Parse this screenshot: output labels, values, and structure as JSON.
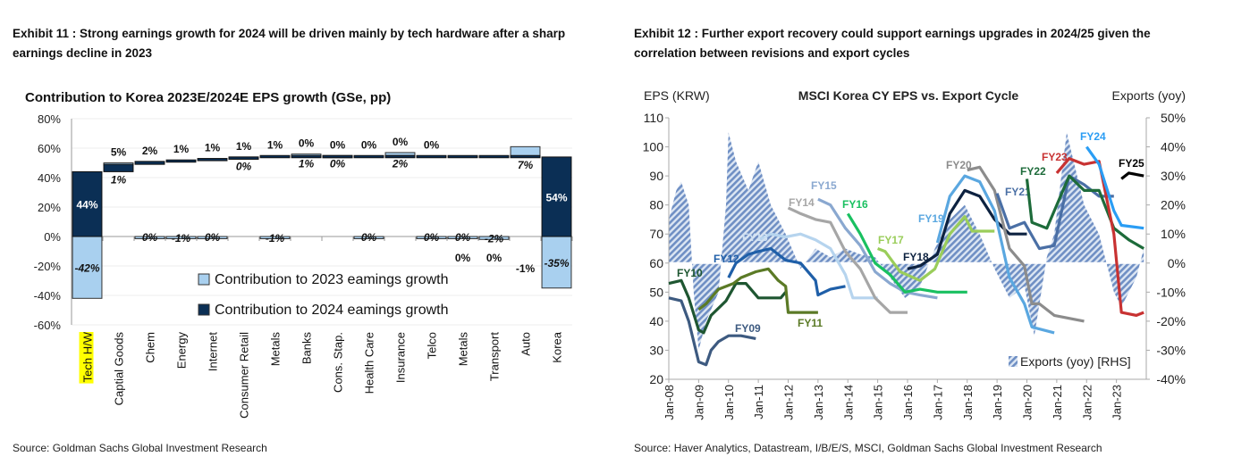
{
  "left": {
    "exhibit_title": "Exhibit 11 : Strong earnings growth for 2024 will be driven mainly by tech hardware after a sharp earnings decline in 2023",
    "source": "Source: Goldman Sachs Global Investment Research",
    "chart_data": {
      "type": "bar",
      "title": "Contribution to Korea 2023E/2024E EPS growth (GSe, pp)",
      "categories": [
        "Tech H/W",
        "Captial Goods",
        "Chem",
        "Energy",
        "Internet",
        "Consumer Retail",
        "Metals",
        "Banks",
        "Cons. Stap.",
        "Health Care",
        "Insurance",
        "Telco",
        "Metals",
        "Transport",
        "Auto",
        "Korea"
      ],
      "highlighted_category": "Tech H/W",
      "series": [
        {
          "name": "Contribution to 2023 eamings growth",
          "color": "#a9d0ef",
          "values": [
            -42,
            1,
            0,
            -1,
            0,
            0,
            -1,
            1,
            0,
            0,
            2,
            0,
            0,
            -2,
            7,
            -35
          ]
        },
        {
          "name": "Contribution to 2024 eamings growth",
          "color": "#0b2f55",
          "values": [
            44,
            5,
            2,
            1,
            1,
            1,
            1,
            0,
            0,
            0,
            0,
            0,
            0,
            0,
            -1,
            54
          ]
        }
      ],
      "yticks": [
        "80%",
        "60%",
        "40%",
        "20%",
        "0%",
        "-20%",
        "-40%",
        "-60%"
      ],
      "ylim": [
        -60,
        80
      ],
      "grid": true,
      "legend": "bottom-center"
    }
  },
  "right": {
    "exhibit_title": "Exhibit 12 : Further export recovery could support earnings upgrades in 2024/25 given the correlation between revisions and export cycles",
    "source": "Source: Haver Analytics, Datastream, I/B/E/S, MSCI, Goldman Sachs Global Investment Research",
    "chart_data": {
      "type": "line",
      "title": "MSCI Korea CY EPS vs. Export Cycle",
      "ylabel_left": "EPS (KRW)",
      "ylabel_right": "Exports (yoy)",
      "ylim_left": [
        20,
        110
      ],
      "ylim_right": [
        -40,
        50
      ],
      "yticks_left": [
        "110",
        "100",
        "90",
        "80",
        "70",
        "60",
        "50",
        "40",
        "30",
        "20"
      ],
      "yticks_right": [
        "50%",
        "40%",
        "30%",
        "20%",
        "10%",
        "0%",
        "-10%",
        "-20%",
        "-30%",
        "-40%"
      ],
      "xticks": [
        "Jan-08",
        "Jan-09",
        "Jan-10",
        "Jan-11",
        "Jan-12",
        "Jan-13",
        "Jan-14",
        "Jan-15",
        "Jan-16",
        "Jan-17",
        "Jan-18",
        "Jan-19",
        "Jan-20",
        "Jan-21",
        "Jan-22",
        "Jan-23"
      ],
      "legend": "bottom-right",
      "exports": {
        "name": "Exports (yoy) [RHS]",
        "color": "#5b7fb8",
        "points": [
          [
            "2008-01",
            15
          ],
          [
            "2008-04",
            25
          ],
          [
            "2008-06",
            28
          ],
          [
            "2008-09",
            20
          ],
          [
            "2008-11",
            -10
          ],
          [
            "2009-01",
            -30
          ],
          [
            "2009-04",
            -20
          ],
          [
            "2009-09",
            -10
          ],
          [
            "2009-12",
            20
          ],
          [
            "2010-01",
            45
          ],
          [
            "2010-04",
            35
          ],
          [
            "2010-09",
            25
          ],
          [
            "2011-01",
            35
          ],
          [
            "2011-06",
            20
          ],
          [
            "2011-12",
            10
          ],
          [
            "2012-06",
            -2
          ],
          [
            "2012-12",
            5
          ],
          [
            "2013-06",
            2
          ],
          [
            "2013-12",
            5
          ],
          [
            "2014-06",
            3
          ],
          [
            "2014-12",
            2
          ],
          [
            "2015-06",
            -5
          ],
          [
            "2015-12",
            -12
          ],
          [
            "2016-06",
            -8
          ],
          [
            "2016-12",
            5
          ],
          [
            "2017-06",
            15
          ],
          [
            "2017-12",
            20
          ],
          [
            "2018-06",
            10
          ],
          [
            "2018-12",
            -2
          ],
          [
            "2019-06",
            -12
          ],
          [
            "2019-12",
            -8
          ],
          [
            "2020-04",
            -25
          ],
          [
            "2020-09",
            2
          ],
          [
            "2020-12",
            10
          ],
          [
            "2021-05",
            45
          ],
          [
            "2021-12",
            20
          ],
          [
            "2022-06",
            10
          ],
          [
            "2022-12",
            -10
          ],
          [
            "2023-03",
            -15
          ],
          [
            "2023-09",
            -5
          ],
          [
            "2023-12",
            5
          ]
        ]
      },
      "series": [
        {
          "name": "FY09",
          "color": "#3d5a80",
          "points": [
            [
              "2008-01",
              48
            ],
            [
              "2008-06",
              47
            ],
            [
              "2008-09",
              40
            ],
            [
              "2009-01",
              26
            ],
            [
              "2009-04",
              25
            ],
            [
              "2009-06",
              30
            ],
            [
              "2009-09",
              33
            ],
            [
              "2010-01",
              35
            ],
            [
              "2010-06",
              35
            ],
            [
              "2010-12",
              34
            ]
          ]
        },
        {
          "name": "FY10",
          "color": "#1e5631",
          "points": [
            [
              "2008-01",
              53
            ],
            [
              "2008-06",
              54
            ],
            [
              "2008-09",
              48
            ],
            [
              "2009-01",
              37
            ],
            [
              "2009-03",
              36
            ],
            [
              "2009-06",
              42
            ],
            [
              "2009-12",
              47
            ],
            [
              "2010-04",
              53
            ],
            [
              "2010-08",
              53
            ],
            [
              "2011-01",
              48
            ],
            [
              "2011-06",
              48
            ],
            [
              "2011-10",
              48
            ],
            [
              "2011-12",
              50
            ]
          ]
        },
        {
          "name": "FY11",
          "color": "#5b7a26",
          "points": [
            [
              "2009-01",
              44
            ],
            [
              "2009-04",
              46
            ],
            [
              "2009-09",
              51
            ],
            [
              "2010-03",
              53
            ],
            [
              "2010-06",
              55
            ],
            [
              "2010-12",
              57
            ],
            [
              "2011-05",
              58
            ],
            [
              "2011-09",
              54
            ],
            [
              "2011-12",
              52
            ],
            [
              "2012-01",
              43
            ],
            [
              "2013-01",
              43
            ]
          ]
        },
        {
          "name": "FY12",
          "color": "#1f5fa8",
          "points": [
            [
              "2010-01",
              55
            ],
            [
              "2010-04",
              60
            ],
            [
              "2010-09",
              63
            ],
            [
              "2011-01",
              64
            ],
            [
              "2011-06",
              65
            ],
            [
              "2011-12",
              61
            ],
            [
              "2012-06",
              60
            ],
            [
              "2012-12",
              54
            ],
            [
              "2013-01",
              49
            ],
            [
              "2013-06",
              51
            ],
            [
              "2013-12",
              52
            ]
          ]
        },
        {
          "name": "FY13",
          "color": "#b6d4ee",
          "points": [
            [
              "2011-01",
              68
            ],
            [
              "2011-06",
              70
            ],
            [
              "2011-12",
              69
            ],
            [
              "2012-06",
              70
            ],
            [
              "2012-12",
              68
            ],
            [
              "2013-06",
              65
            ],
            [
              "2013-12",
              56
            ],
            [
              "2014-03",
              48
            ],
            [
              "2015-01",
              48
            ]
          ]
        },
        {
          "name": "FY14",
          "color": "#a6a6a6",
          "points": [
            [
              "2012-01",
              79
            ],
            [
              "2012-06",
              77
            ],
            [
              "2012-12",
              75
            ],
            [
              "2013-06",
              74
            ],
            [
              "2013-12",
              64
            ],
            [
              "2014-06",
              58
            ],
            [
              "2014-12",
              48
            ],
            [
              "2015-06",
              43
            ],
            [
              "2016-01",
              43
            ]
          ]
        },
        {
          "name": "FY15",
          "color": "#8aa8d0",
          "points": [
            [
              "2013-01",
              82
            ],
            [
              "2013-06",
              80
            ],
            [
              "2013-12",
              72
            ],
            [
              "2014-06",
              66
            ],
            [
              "2014-12",
              57
            ],
            [
              "2015-06",
              53
            ],
            [
              "2015-12",
              50
            ],
            [
              "2016-06",
              49
            ],
            [
              "2017-01",
              48
            ]
          ]
        },
        {
          "name": "FY16",
          "color": "#19c060",
          "points": [
            [
              "2014-01",
              77
            ],
            [
              "2014-06",
              70
            ],
            [
              "2014-12",
              60
            ],
            [
              "2015-06",
              56
            ],
            [
              "2015-12",
              50
            ],
            [
              "2016-06",
              51
            ],
            [
              "2017-01",
              50
            ],
            [
              "2018-01",
              50
            ]
          ]
        },
        {
          "name": "FY17",
          "color": "#9acd5a",
          "points": [
            [
              "2015-01",
              65
            ],
            [
              "2015-04",
              64
            ],
            [
              "2015-10",
              57
            ],
            [
              "2016-06",
              54
            ],
            [
              "2016-12",
              58
            ],
            [
              "2017-06",
              70
            ],
            [
              "2017-12",
              76
            ],
            [
              "2018-03",
              71
            ],
            [
              "2018-12",
              71
            ]
          ]
        },
        {
          "name": "FY18",
          "color": "#0d2240",
          "points": [
            [
              "2016-01",
              58
            ],
            [
              "2016-06",
              59
            ],
            [
              "2017-01",
              63
            ],
            [
              "2017-06",
              77
            ],
            [
              "2017-12",
              85
            ],
            [
              "2018-06",
              83
            ],
            [
              "2018-12",
              75
            ],
            [
              "2019-06",
              70
            ],
            [
              "2020-01",
              70
            ]
          ]
        },
        {
          "name": "FY19",
          "color": "#5aa7e0",
          "points": [
            [
              "2017-01",
              67
            ],
            [
              "2017-06",
              83
            ],
            [
              "2017-12",
              90
            ],
            [
              "2018-06",
              88
            ],
            [
              "2018-12",
              78
            ],
            [
              "2019-06",
              55
            ],
            [
              "2019-12",
              46
            ],
            [
              "2020-03",
              38
            ],
            [
              "2020-12",
              36
            ]
          ]
        },
        {
          "name": "FY20",
          "color": "#8c8c8c",
          "points": [
            [
              "2018-01",
              92
            ],
            [
              "2018-06",
              93
            ],
            [
              "2018-12",
              85
            ],
            [
              "2019-06",
              65
            ],
            [
              "2019-12",
              59
            ],
            [
              "2020-03",
              46
            ],
            [
              "2020-06",
              46
            ],
            [
              "2020-12",
              42
            ],
            [
              "2021-12",
              40
            ]
          ]
        },
        {
          "name": "FY21",
          "color": "#4a6fa5",
          "points": [
            [
              "2019-01",
              84
            ],
            [
              "2019-06",
              72
            ],
            [
              "2019-12",
              74
            ],
            [
              "2020-06",
              65
            ],
            [
              "2020-12",
              66
            ],
            [
              "2021-06",
              90
            ],
            [
              "2021-12",
              87
            ],
            [
              "2022-06",
              83
            ],
            [
              "2022-12",
              83
            ]
          ]
        },
        {
          "name": "FY22",
          "color": "#1d6b3a",
          "points": [
            [
              "2020-01",
              89
            ],
            [
              "2020-03",
              74
            ],
            [
              "2020-09",
              72
            ],
            [
              "2021-01",
              80
            ],
            [
              "2021-06",
              90
            ],
            [
              "2021-12",
              85
            ],
            [
              "2022-06",
              85
            ],
            [
              "2022-12",
              72
            ],
            [
              "2023-06",
              68
            ],
            [
              "2023-12",
              65
            ]
          ]
        },
        {
          "name": "FY23",
          "color": "#c83232",
          "points": [
            [
              "2021-01",
              91
            ],
            [
              "2021-06",
              96
            ],
            [
              "2021-12",
              94
            ],
            [
              "2022-06",
              95
            ],
            [
              "2022-12",
              70
            ],
            [
              "2023-03",
              43
            ],
            [
              "2023-09",
              42
            ],
            [
              "2023-12",
              43
            ]
          ]
        },
        {
          "name": "FY24",
          "color": "#2a9df4",
          "points": [
            [
              "2022-01",
              100
            ],
            [
              "2022-06",
              94
            ],
            [
              "2022-12",
              78
            ],
            [
              "2023-03",
              73
            ],
            [
              "2023-12",
              72
            ]
          ]
        },
        {
          "name": "FY25",
          "color": "#000000",
          "points": [
            [
              "2023-03",
              89
            ],
            [
              "2023-06",
              91
            ],
            [
              "2023-12",
              90
            ]
          ]
        }
      ]
    }
  }
}
